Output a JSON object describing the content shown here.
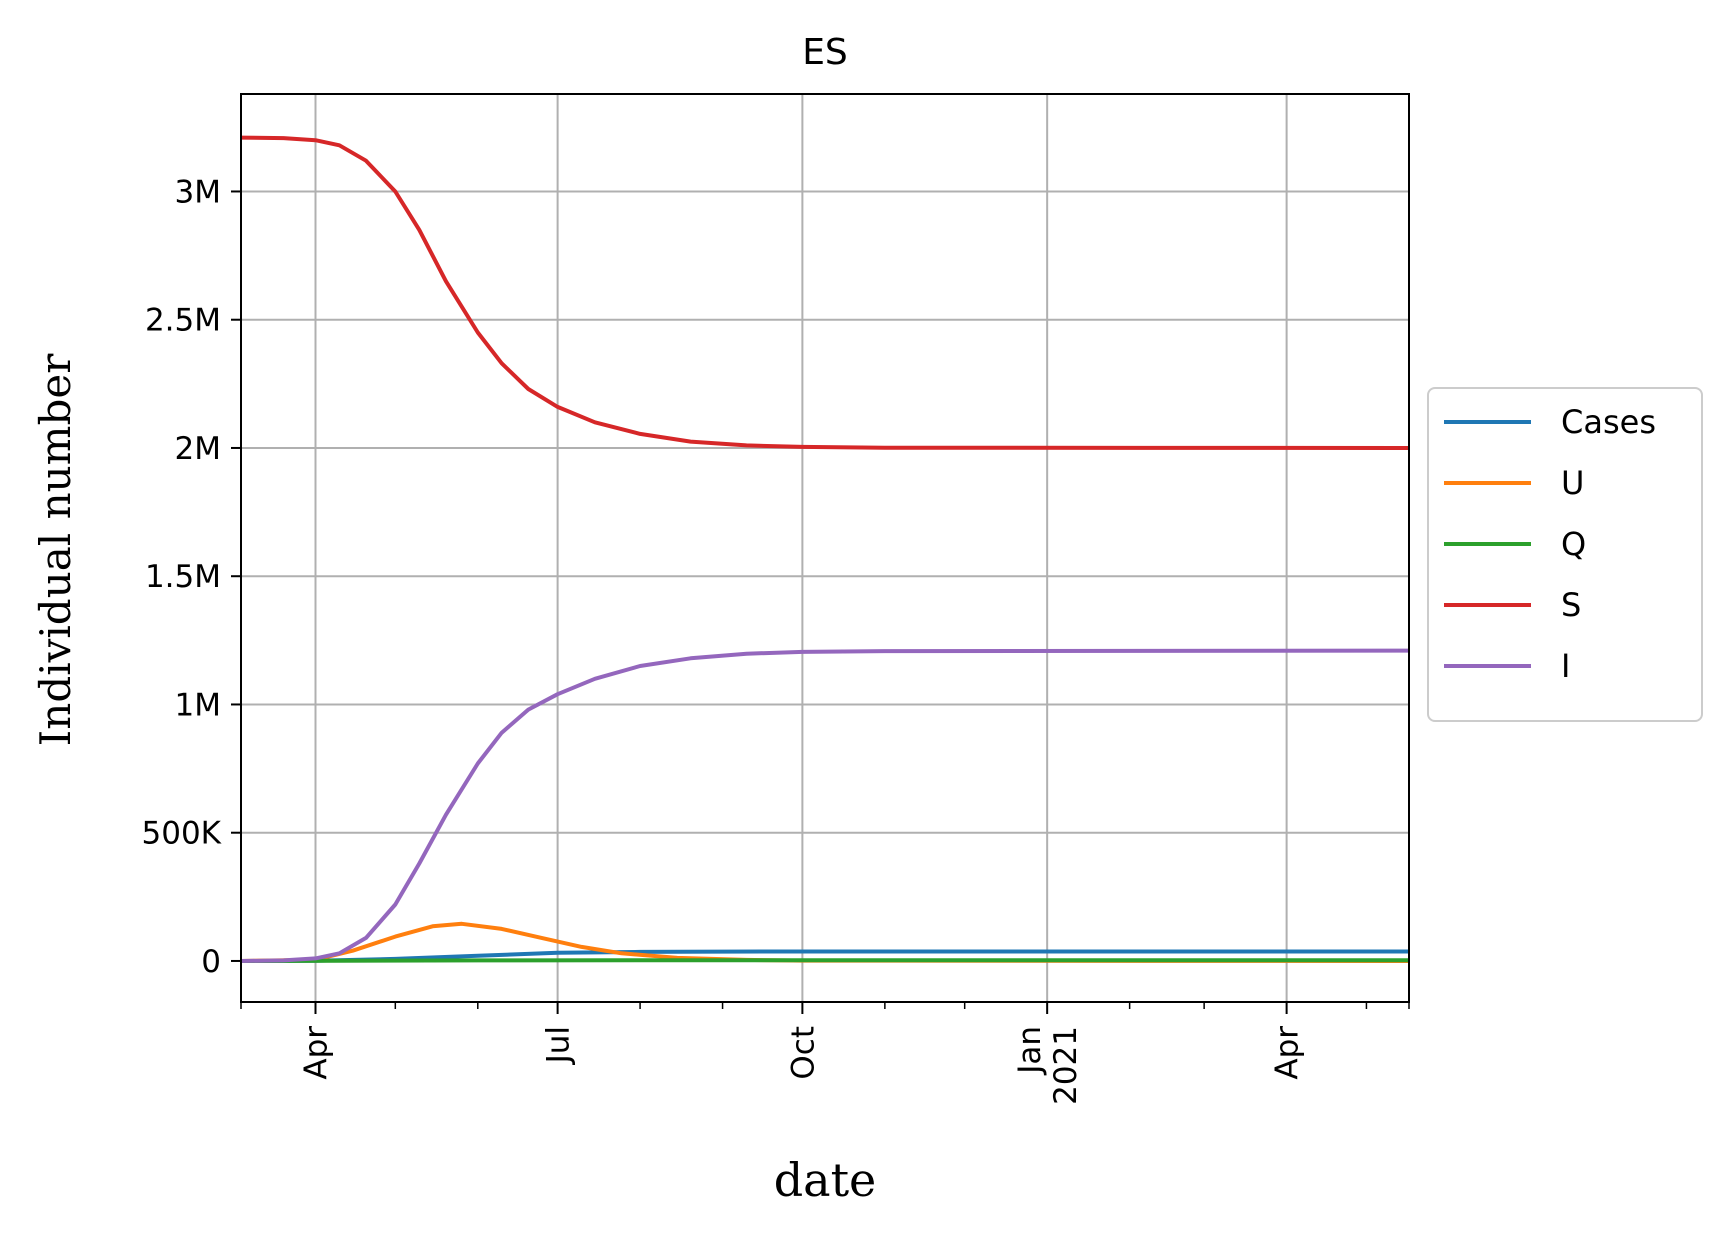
{
  "chart_data": {
    "type": "line",
    "title": "ES",
    "xlabel": "date",
    "ylabel": "Individual number",
    "x_range": [
      "2020-03-04",
      "2021-05-17"
    ],
    "ylim": [
      -160000,
      3380000
    ],
    "grid": true,
    "legend_position": "center-right-outside",
    "x_ticks": [
      {
        "date": "2020-04-01",
        "label": "Apr",
        "label2": ""
      },
      {
        "date": "2020-07-01",
        "label": "Jul",
        "label2": ""
      },
      {
        "date": "2020-10-01",
        "label": "Oct",
        "label2": ""
      },
      {
        "date": "2021-01-01",
        "label": "Jan",
        "label2": "2021"
      },
      {
        "date": "2021-04-01",
        "label": "Apr",
        "label2": ""
      }
    ],
    "x_minor_ticks": [
      "2020-05-01",
      "2020-06-01",
      "2020-08-01",
      "2020-09-01",
      "2020-11-01",
      "2020-12-01",
      "2021-02-01",
      "2021-03-01",
      "2021-05-01"
    ],
    "y_ticks": [
      {
        "value": 0,
        "label": "0"
      },
      {
        "value": 500000,
        "label": "500K"
      },
      {
        "value": 1000000,
        "label": "1M"
      },
      {
        "value": 1500000,
        "label": "1.5M"
      },
      {
        "value": 2000000,
        "label": "2M"
      },
      {
        "value": 2500000,
        "label": "2.5M"
      },
      {
        "value": 3000000,
        "label": "3M"
      }
    ],
    "series": [
      {
        "name": "Cases",
        "color": "#1f77b4",
        "points": [
          [
            "2020-03-04",
            0
          ],
          [
            "2020-04-01",
            1000
          ],
          [
            "2020-05-01",
            8000
          ],
          [
            "2020-06-01",
            20000
          ],
          [
            "2020-07-01",
            32000
          ],
          [
            "2020-08-01",
            35500
          ],
          [
            "2020-09-01",
            36500
          ],
          [
            "2020-10-01",
            37000
          ],
          [
            "2021-01-01",
            37000
          ],
          [
            "2021-05-17",
            37000
          ]
        ]
      },
      {
        "name": "U",
        "color": "#ff7f0e",
        "points": [
          [
            "2020-03-04",
            0
          ],
          [
            "2020-04-01",
            5000
          ],
          [
            "2020-04-15",
            40000
          ],
          [
            "2020-05-01",
            95000
          ],
          [
            "2020-05-15",
            135000
          ],
          [
            "2020-05-26",
            145000
          ],
          [
            "2020-06-10",
            125000
          ],
          [
            "2020-06-25",
            90000
          ],
          [
            "2020-07-10",
            55000
          ],
          [
            "2020-07-25",
            30000
          ],
          [
            "2020-08-15",
            12000
          ],
          [
            "2020-09-10",
            4000
          ],
          [
            "2020-10-01",
            1500
          ],
          [
            "2021-05-17",
            0
          ]
        ]
      },
      {
        "name": "Q",
        "color": "#2ca02c",
        "points": [
          [
            "2020-03-04",
            0
          ],
          [
            "2020-06-01",
            2000
          ],
          [
            "2020-08-01",
            3000
          ],
          [
            "2021-05-17",
            3000
          ]
        ]
      },
      {
        "name": "S",
        "color": "#d62728",
        "points": [
          [
            "2020-03-04",
            3210000
          ],
          [
            "2020-03-20",
            3208000
          ],
          [
            "2020-04-01",
            3200000
          ],
          [
            "2020-04-10",
            3180000
          ],
          [
            "2020-04-20",
            3120000
          ],
          [
            "2020-05-01",
            3000000
          ],
          [
            "2020-05-10",
            2850000
          ],
          [
            "2020-05-20",
            2650000
          ],
          [
            "2020-06-01",
            2450000
          ],
          [
            "2020-06-10",
            2330000
          ],
          [
            "2020-06-20",
            2230000
          ],
          [
            "2020-07-01",
            2160000
          ],
          [
            "2020-07-15",
            2100000
          ],
          [
            "2020-08-01",
            2055000
          ],
          [
            "2020-08-20",
            2025000
          ],
          [
            "2020-09-10",
            2010000
          ],
          [
            "2020-10-01",
            2004000
          ],
          [
            "2020-11-01",
            2001000
          ],
          [
            "2021-05-17",
            2000000
          ]
        ]
      },
      {
        "name": "I",
        "color": "#9467bd",
        "points": [
          [
            "2020-03-04",
            0
          ],
          [
            "2020-03-20",
            2000
          ],
          [
            "2020-04-01",
            10000
          ],
          [
            "2020-04-10",
            30000
          ],
          [
            "2020-04-20",
            90000
          ],
          [
            "2020-05-01",
            220000
          ],
          [
            "2020-05-10",
            380000
          ],
          [
            "2020-05-20",
            570000
          ],
          [
            "2020-06-01",
            770000
          ],
          [
            "2020-06-10",
            890000
          ],
          [
            "2020-06-20",
            980000
          ],
          [
            "2020-07-01",
            1040000
          ],
          [
            "2020-07-15",
            1100000
          ],
          [
            "2020-08-01",
            1150000
          ],
          [
            "2020-08-20",
            1180000
          ],
          [
            "2020-09-10",
            1198000
          ],
          [
            "2020-10-01",
            1205000
          ],
          [
            "2020-11-01",
            1208000
          ],
          [
            "2021-05-17",
            1210000
          ]
        ]
      }
    ]
  }
}
